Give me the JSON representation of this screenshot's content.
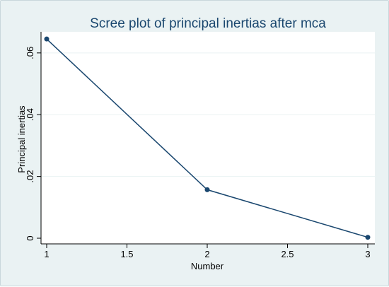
{
  "chart_data": {
    "type": "line",
    "title": "Scree plot of principal inertias after mca",
    "xlabel": "Number",
    "ylabel": "Principal inertias",
    "x": [
      1,
      2,
      3
    ],
    "series": [
      {
        "values": [
          0.0645,
          0.0157,
          0.0003
        ]
      }
    ],
    "xlim": [
      1,
      3
    ],
    "ylim": [
      0,
      0.065
    ],
    "xticks": [
      "1",
      "1.5",
      "2",
      "2.5",
      "3"
    ],
    "yticks": [
      "0",
      ".02",
      ".04",
      ".06"
    ],
    "grid": true,
    "legend": "none",
    "colors": {
      "line": "#1a476f",
      "marker": "#1a476f",
      "title": "#1a476f",
      "background": "#eaf2f3",
      "plot_area": "#ffffff",
      "grid": "#eaf2f3"
    }
  }
}
